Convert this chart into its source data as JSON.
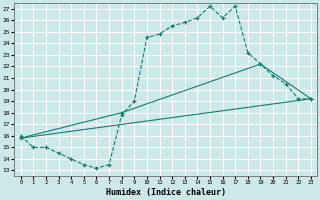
{
  "xlabel": "Humidex (Indice chaleur)",
  "background_color": "#cce8e8",
  "grid_color": "#ffffff",
  "line_color": "#1a7a6e",
  "xlim": [
    -0.5,
    23.5
  ],
  "ylim": [
    12.5,
    27.5
  ],
  "xticks": [
    0,
    1,
    2,
    3,
    4,
    5,
    6,
    7,
    8,
    9,
    10,
    11,
    12,
    13,
    14,
    15,
    16,
    17,
    18,
    19,
    20,
    21,
    22,
    23
  ],
  "yticks": [
    13,
    14,
    15,
    16,
    17,
    18,
    19,
    20,
    21,
    22,
    23,
    24,
    25,
    26,
    27
  ],
  "line1_x": [
    0,
    1,
    2,
    3,
    4,
    5,
    6,
    7,
    8,
    9,
    10,
    11,
    12,
    13,
    14,
    15,
    16,
    17,
    18,
    19,
    20,
    21,
    22,
    23
  ],
  "line1_y": [
    16,
    15,
    15,
    14.5,
    14,
    13.5,
    13.2,
    13.5,
    17.8,
    19,
    24.5,
    24.8,
    25.5,
    25.8,
    26.2,
    27.2,
    26.2,
    27.2,
    23.2,
    22.2,
    21.2,
    20.5,
    19.2,
    19.2
  ],
  "line2_x": [
    0,
    23
  ],
  "line2_y": [
    15.8,
    19.2
  ],
  "line3_x": [
    0,
    8,
    19,
    23
  ],
  "line3_y": [
    15.8,
    18.0,
    22.2,
    19.2
  ]
}
